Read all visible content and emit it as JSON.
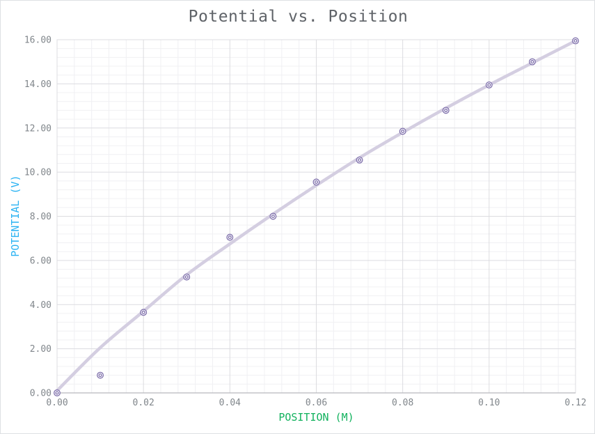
{
  "chart_data": {
    "type": "scatter",
    "title": "Potential vs. Position",
    "xlabel": "POSITION (M)",
    "ylabel": "POTENTIAL (V)",
    "x": [
      0.0,
      0.01,
      0.02,
      0.03,
      0.04,
      0.05,
      0.06,
      0.07,
      0.08,
      0.09,
      0.1,
      0.11,
      0.12
    ],
    "y": [
      0.0,
      0.8,
      3.65,
      5.25,
      7.05,
      8.0,
      9.55,
      10.55,
      11.85,
      12.8,
      13.95,
      15.0,
      15.95
    ],
    "trendline": {
      "x": [
        0.0,
        0.01,
        0.02,
        0.03,
        0.04,
        0.05,
        0.06,
        0.07,
        0.08,
        0.09,
        0.1,
        0.11,
        0.12
      ],
      "y": [
        0.1,
        2.05,
        3.7,
        5.35,
        6.75,
        8.1,
        9.4,
        10.65,
        11.8,
        12.9,
        13.95,
        14.95,
        15.95
      ]
    },
    "xlim": [
      0.0,
      0.12
    ],
    "ylim": [
      0.0,
      16.0
    ],
    "x_tick_labels": [
      "0.00",
      "0.02",
      "0.04",
      "0.06",
      "0.08",
      "0.10",
      "0.12"
    ],
    "y_tick_labels": [
      "0.00",
      "2.00",
      "4.00",
      "6.00",
      "8.00",
      "10.00",
      "12.00",
      "14.00",
      "16.00"
    ],
    "x_major": 0.02,
    "y_major": 2.0,
    "x_minor_divisions": 5,
    "y_minor_divisions": 5,
    "grid": "major-and-minor",
    "legend_position": "none",
    "colors": {
      "title": "#5f6368",
      "tick_label": "#80868b",
      "x_axis_title": "#12b25e",
      "y_axis_title": "#29b2f2",
      "marker": "#7e6fab",
      "marker_fill": "#ffffff",
      "trendline": "#d4cee1",
      "grid_major": "#dcdce0",
      "grid_minor": "#f0f0f3",
      "axis_line": "#b6b8bd",
      "background": "#ffffff"
    }
  }
}
